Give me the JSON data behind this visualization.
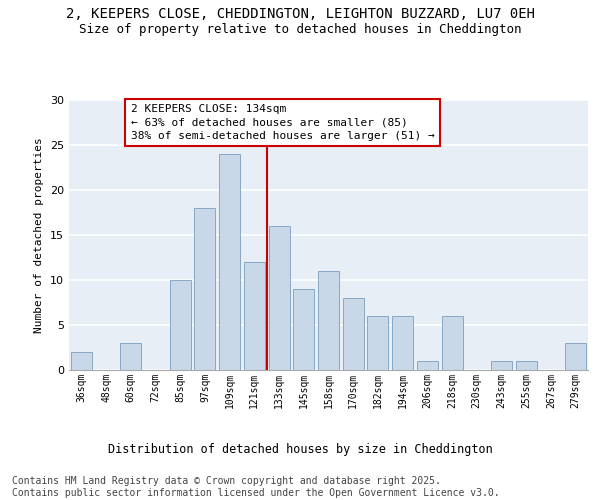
{
  "title_line1": "2, KEEPERS CLOSE, CHEDDINGTON, LEIGHTON BUZZARD, LU7 0EH",
  "title_line2": "Size of property relative to detached houses in Cheddington",
  "xlabel": "Distribution of detached houses by size in Cheddington",
  "ylabel": "Number of detached properties",
  "categories": [
    "36sqm",
    "48sqm",
    "60sqm",
    "72sqm",
    "85sqm",
    "97sqm",
    "109sqm",
    "121sqm",
    "133sqm",
    "145sqm",
    "158sqm",
    "170sqm",
    "182sqm",
    "194sqm",
    "206sqm",
    "218sqm",
    "230sqm",
    "243sqm",
    "255sqm",
    "267sqm",
    "279sqm"
  ],
  "values": [
    2,
    0,
    3,
    0,
    10,
    18,
    24,
    12,
    16,
    9,
    11,
    8,
    6,
    6,
    1,
    6,
    0,
    1,
    1,
    0,
    3
  ],
  "bar_color": "#c8d8e8",
  "bar_edge_color": "#7a9fbf",
  "ref_line_color": "#cc0000",
  "annotation_text": "2 KEEPERS CLOSE: 134sqm\n← 63% of detached houses are smaller (85)\n38% of semi-detached houses are larger (51) →",
  "annotation_box_color": "#cc0000",
  "ylim": [
    0,
    30
  ],
  "yticks": [
    0,
    5,
    10,
    15,
    20,
    25,
    30
  ],
  "bg_color": "#e8eef5",
  "grid_color": "#ffffff",
  "footer_text": "Contains HM Land Registry data © Crown copyright and database right 2025.\nContains public sector information licensed under the Open Government Licence v3.0.",
  "title_fontsize": 10,
  "subtitle_fontsize": 9,
  "annotation_fontsize": 8,
  "footer_fontsize": 7,
  "ylabel_fontsize": 8,
  "xlabel_fontsize": 8.5,
  "xtick_fontsize": 7,
  "ytick_fontsize": 8
}
